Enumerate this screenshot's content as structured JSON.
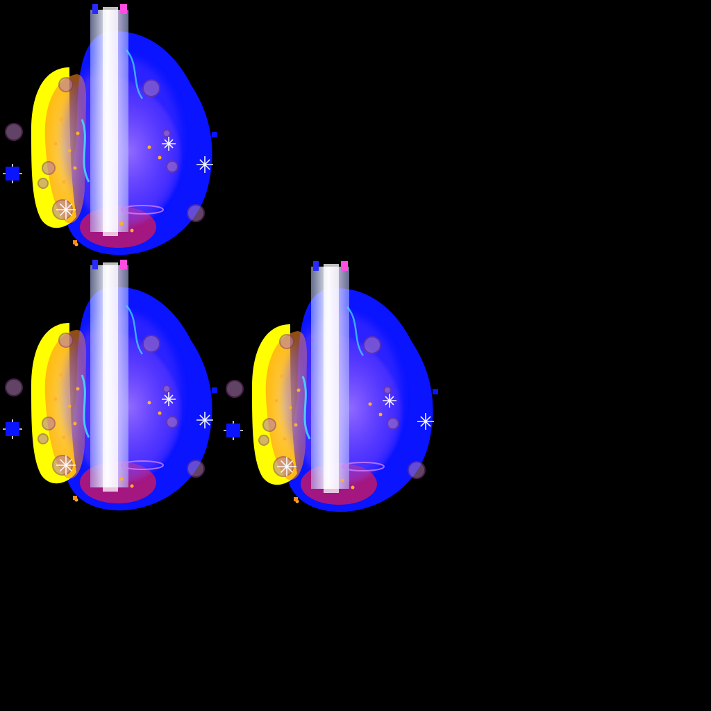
{
  "sprite_sheet": {
    "background_color": "#000000",
    "effect_name": "light-pillar-burst",
    "frame_count": 3,
    "colors": {
      "outer_glow": "#0a14ff",
      "warm_glow": "#ffff00",
      "orange": "#ff8a1a",
      "violet": "#9a4dff",
      "magenta": "#c0186a",
      "pillar_core": "#ffffff",
      "pillar_tint": "#b9c6ff",
      "spark": "#ffffff",
      "cyan": "#42e6ff"
    },
    "frames": [
      {
        "id": "frame-1",
        "variant": "a"
      },
      {
        "id": "frame-2",
        "variant": "b"
      },
      {
        "id": "frame-3",
        "variant": "c"
      }
    ]
  }
}
